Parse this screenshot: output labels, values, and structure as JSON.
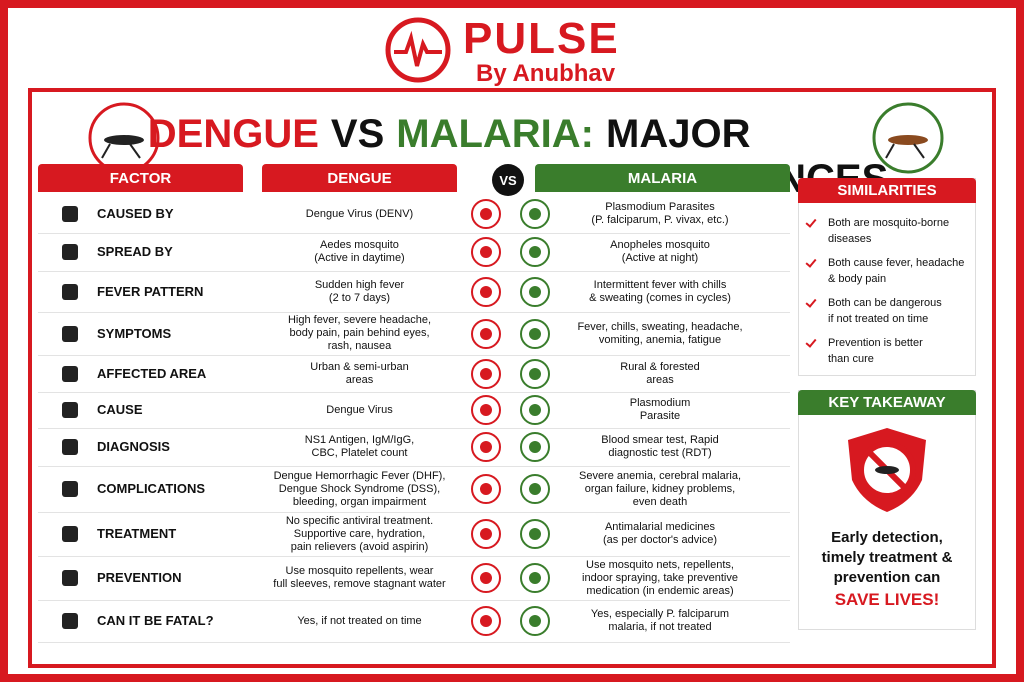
{
  "brand": {
    "name": "PULSE",
    "byline": "By Anubhav"
  },
  "title": [
    "DENGUE",
    "VS",
    "MALARIA:",
    "MAJOR DIFFERENCES"
  ],
  "table": {
    "headers": [
      "FACTOR",
      "DENGUE",
      "VS",
      "MALARIA"
    ],
    "rows": [
      [
        "CAUSED BY",
        [
          "Dengue Virus (DENV)"
        ],
        [
          "Plasmodium Parasites",
          "(P. falciparum, P. vivax, etc.)"
        ]
      ],
      [
        "SPREAD BY",
        [
          "Aedes mosquito",
          "(Active in daytime)"
        ],
        [
          "Anopheles mosquito",
          "(Active at night)"
        ]
      ],
      [
        "FEVER PATTERN",
        [
          "Sudden high fever",
          "(2 to 7 days)"
        ],
        [
          "Intermittent fever with chills",
          "& sweating (comes in cycles)"
        ]
      ],
      [
        "SYMPTOMS",
        [
          "High fever, severe headache,",
          "body pain, pain behind eyes,",
          "rash, nausea"
        ],
        [
          "Fever, chills, sweating, headache,",
          "vomiting, anemia, fatigue"
        ]
      ],
      [
        "AFFECTED AREA",
        [
          "Urban & semi-urban",
          "areas"
        ],
        [
          "Rural & forested",
          "areas"
        ]
      ],
      [
        "CAUSE",
        [
          "Dengue Virus"
        ],
        [
          "Plasmodium",
          "Parasite"
        ]
      ],
      [
        "DIAGNOSIS",
        [
          "NS1 Antigen, IgM/IgG,",
          "CBC, Platelet count"
        ],
        [
          "Blood smear test, Rapid",
          "diagnostic test (RDT)"
        ]
      ],
      [
        "COMPLICATIONS",
        [
          "Dengue Hemorrhagic Fever (DHF),",
          "Dengue Shock Syndrome (DSS),",
          "bleeding, organ impairment"
        ],
        [
          "Severe anemia, cerebral malaria,",
          "organ failure, kidney problems,",
          "even death"
        ]
      ],
      [
        "TREATMENT",
        [
          "No specific antiviral treatment.",
          "Supportive care, hydration,",
          "pain relievers (avoid aspirin)"
        ],
        [
          "Antimalarial medicines",
          "(as per doctor's advice)"
        ]
      ],
      [
        "PREVENTION",
        [
          "Use mosquito repellents, wear",
          "full sleeves, remove stagnant water"
        ],
        [
          "Use mosquito nets, repellents,",
          "indoor spraying, take preventive",
          "medication (in endemic areas)"
        ]
      ],
      [
        "CAN IT BE FATAL?",
        [
          "Yes, if not treated on time"
        ],
        [
          "Yes, especially P. falciparum",
          "malaria, if not treated"
        ]
      ]
    ]
  },
  "similarities": {
    "title": "SIMILARITIES",
    "items": [
      [
        "Both are mosquito-borne",
        "diseases"
      ],
      [
        "Both cause fever, headache",
        "& body pain"
      ],
      [
        "Both can be dangerous",
        "if not treated on time"
      ],
      [
        "Prevention is better",
        "than cure"
      ]
    ]
  },
  "key_takeaway": {
    "title": "KEY TAKEAWAY",
    "lines": [
      "Early detection,",
      "timely treatment &",
      "prevention can"
    ],
    "highlight": "SAVE LIVES!"
  }
}
